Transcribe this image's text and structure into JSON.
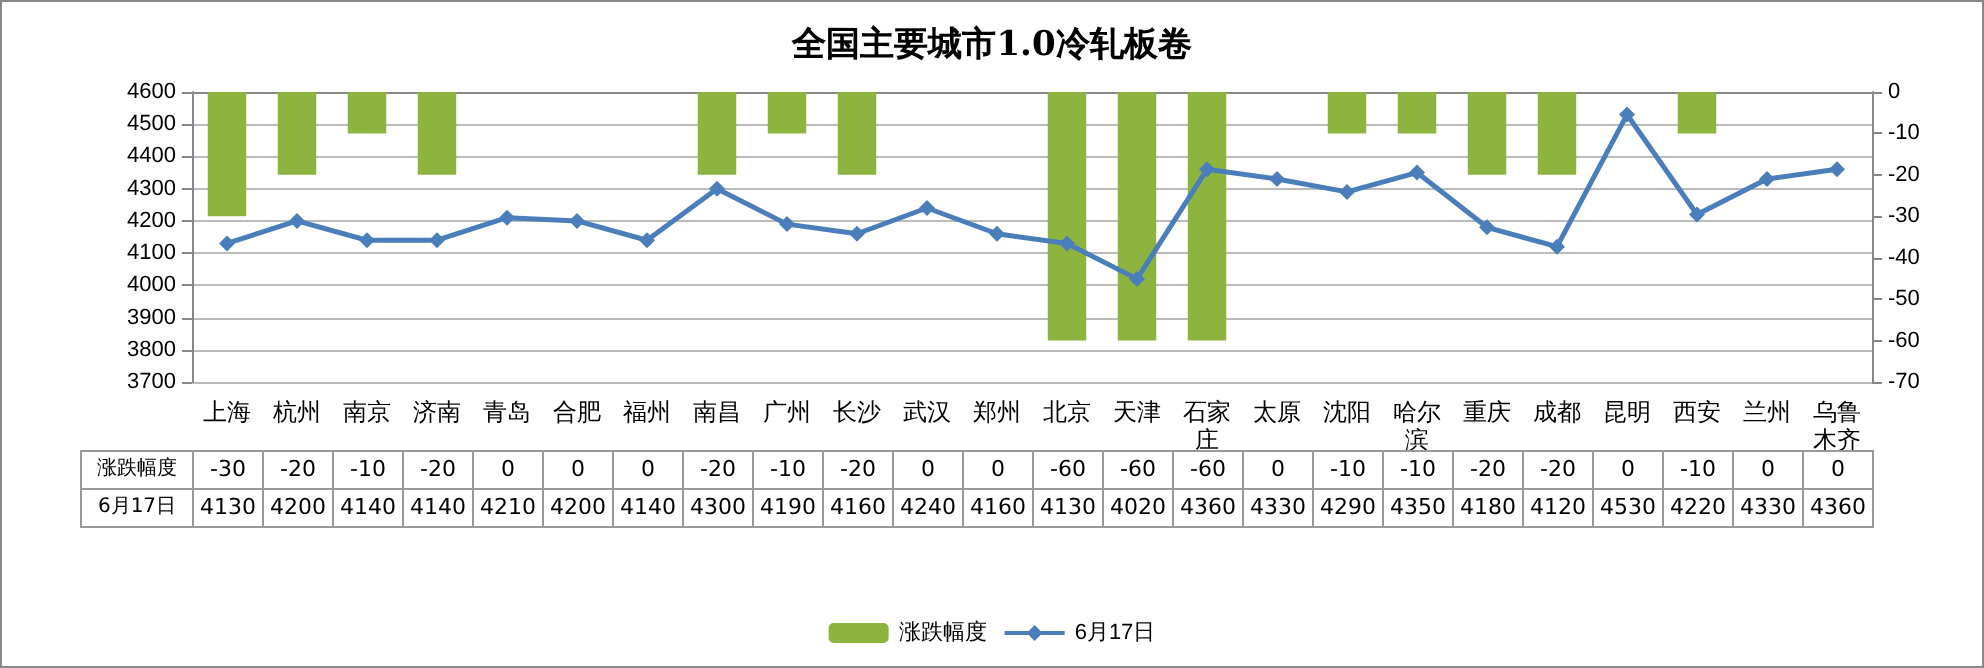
{
  "chart_data": {
    "type": "bar",
    "title": "全国主要城市1.0冷轧板卷",
    "categories": [
      "上海",
      "杭州",
      "南京",
      "济南",
      "青岛",
      "合肥",
      "福州",
      "南昌",
      "广州",
      "长沙",
      "武汉",
      "郑州",
      "北京",
      "天津",
      "石家庄",
      "太原",
      "沈阳",
      "哈尔滨",
      "重庆",
      "成都",
      "昆明",
      "西安",
      "兰州",
      "乌鲁木齐"
    ],
    "series": [
      {
        "name": "涨跌幅度",
        "axis": "y2",
        "color": "#8db43e",
        "values": [
          -30,
          -20,
          -10,
          -20,
          0,
          0,
          0,
          -20,
          -10,
          -20,
          0,
          0,
          -60,
          -60,
          -60,
          0,
          -10,
          -10,
          -20,
          -20,
          0,
          -10,
          0,
          0
        ]
      },
      {
        "name": "6月17日",
        "type": "line",
        "color": "#4a7ebb",
        "marker": "diamond",
        "values": [
          4130,
          4200,
          4140,
          4140,
          4210,
          4200,
          4140,
          4300,
          4190,
          4160,
          4240,
          4160,
          4130,
          4020,
          4360,
          4330,
          4290,
          4350,
          4180,
          4120,
          4530,
          4220,
          4330,
          4360
        ]
      }
    ],
    "ylim": [
      3700,
      4600
    ],
    "yticks": [
      3700,
      3800,
      3900,
      4000,
      4100,
      4200,
      4300,
      4400,
      4500,
      4600
    ],
    "y2lim": [
      -70,
      0
    ],
    "y2ticks": [
      -70,
      -60,
      -50,
      -40,
      -30,
      -20,
      -10,
      0
    ],
    "grid": "y",
    "legend": "bottom",
    "data_labels": true
  }
}
